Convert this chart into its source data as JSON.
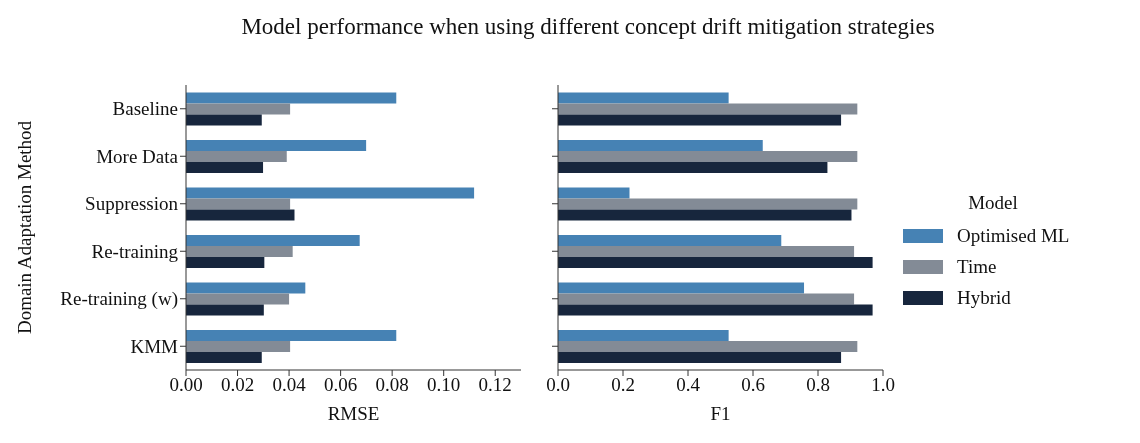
{
  "chart_data": [
    {
      "type": "bar",
      "orientation": "horizontal",
      "title": "Model performance when using different concept drift mitigation strategies",
      "xlabel": "RMSE",
      "ylabel": "Domain Adaptation Method",
      "categories": [
        "Baseline",
        "More Data",
        "Suppression",
        "Re-training",
        "Re-training (w)",
        "KMM"
      ],
      "series": [
        {
          "color": "#4682b4",
          "values": [
            0.0816,
            0.0699,
            0.1118,
            0.0674,
            0.0463,
            0.0816
          ]
        },
        {
          "color": "#838b96",
          "values": [
            0.0404,
            0.0391,
            0.0404,
            0.0414,
            0.04,
            0.0404
          ]
        },
        {
          "color": "#17263d",
          "values": [
            0.0294,
            0.0299,
            0.0421,
            0.0304,
            0.0302,
            0.0294
          ]
        }
      ],
      "xlim": [
        0,
        0.13
      ],
      "xticks": [
        {
          "value": 0,
          "label": "0.00"
        },
        {
          "value": 0.02,
          "label": "0.02"
        },
        {
          "value": 0.04,
          "label": "0.04"
        },
        {
          "value": 0.06,
          "label": "0.06"
        },
        {
          "value": 0.08,
          "label": "0.08"
        },
        {
          "value": 0.1,
          "label": "0.10"
        },
        {
          "value": 0.12,
          "label": "0.12"
        }
      ]
    },
    {
      "type": "bar",
      "orientation": "horizontal",
      "xlabel": "F1",
      "legend_title": "Model",
      "legend": "right",
      "tick_labels": "x",
      "categories": [
        null,
        null,
        null,
        null,
        null,
        null
      ],
      "series": [
        {
          "name": "Optimised ML",
          "color": "#4682b4",
          "values": [
            0.525,
            0.63,
            0.22,
            0.687,
            0.757,
            0.525
          ]
        },
        {
          "name": "Time",
          "color": "#838b96",
          "values": [
            0.921,
            0.921,
            0.921,
            0.911,
            0.911,
            0.921
          ]
        },
        {
          "name": "Hybrid",
          "color": "#17263d",
          "values": [
            0.871,
            0.829,
            0.903,
            0.968,
            0.968,
            0.871
          ]
        }
      ],
      "xlim": [
        0,
        1
      ],
      "xticks": [
        {
          "value": 0,
          "label": "0.0"
        },
        0.2,
        0.4,
        0.6,
        0.8,
        {
          "value": 1,
          "label": "1.0"
        }
      ]
    }
  ]
}
